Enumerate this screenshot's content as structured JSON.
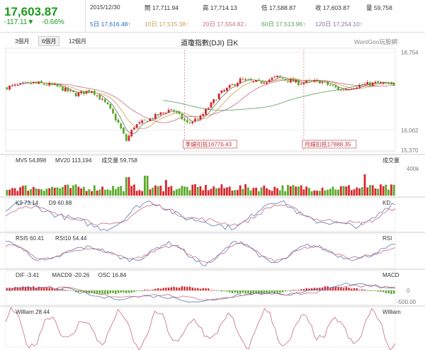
{
  "header": {
    "price": "17,603.87",
    "change": "-117.11▼",
    "change_pct": "-0.66%",
    "date": "2015/12/30",
    "open": "開 17,711.94",
    "high": "高 17,714.13",
    "low": "低 17,588.87",
    "close": "收 17,603.87",
    "volume": "量 59,758",
    "ma5": "5日 17,616.48↑",
    "ma10": "10日 17,515.38↑",
    "ma20": "20日 17,554.82↓",
    "ma60": "60日 17,513.96↑",
    "ma120": "120日 17,254.10↑"
  },
  "tabs": [
    "3個月",
    "6個月",
    "12個月"
  ],
  "chart_title": "道瓊指數(DJI) 日K",
  "brand": "WantGoo玩股網",
  "colors": {
    "up": "#d7262c",
    "down": "#5aaa2a",
    "ma5": "#6b6b6b",
    "ma10": "#c8a04a",
    "ma20": "#c86b7e",
    "ma60": "#55a055",
    "ma120": "#8a6fb0"
  },
  "chart_data": {
    "type": "candlestick",
    "main": {
      "ylim": [
        15370,
        18850
      ],
      "yticks": [
        "18,754",
        "16,062",
        "15,370"
      ],
      "ytick_values": [
        18754,
        16062,
        15370
      ],
      "annotations": [
        {
          "text": "季線扣抵16776.43",
          "index": 67
        },
        {
          "text": "月線扣抵17888.35",
          "index": 112
        }
      ]
    },
    "volume": {
      "labels": [
        "MV5 54,898",
        "MV20 113,194",
        "成交量 59,758"
      ],
      "legend": "成交量",
      "ytick": "400k"
    },
    "kd": {
      "labels": [
        "K9 73.14",
        "D9 60.88"
      ],
      "legend": "KD"
    },
    "rsi": {
      "labels": [
        "RSI5 60.41",
        "RSI10 54.44"
      ],
      "legend": "RSI"
    },
    "macd": {
      "labels": [
        "DIF -3.41",
        "MACD9 -20.26",
        "OSC 16.84"
      ],
      "legend": "MACD",
      "yticks": [
        "0",
        "-500.00"
      ]
    },
    "william": {
      "labels": [
        "William 28.44"
      ],
      "legend": "William"
    }
  }
}
